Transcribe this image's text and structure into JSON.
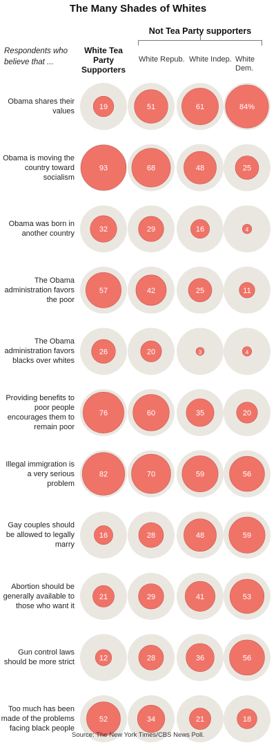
{
  "title": "The Many Shades of Whites",
  "group_label": "Not Tea Party supporters",
  "intro": "Respondents who believe that ...",
  "columns": {
    "c0": "White Tea Party Supporters",
    "c1": "White Repub.",
    "c2": "White Indep.",
    "c3": "White Dem."
  },
  "source": "Source: The New York Times/CBS News Poll.",
  "colors": {
    "outer": "#eae7e1",
    "inner": "#f07368",
    "inner_stroke": "#c9584f"
  },
  "chart_data": {
    "type": "bubble-table",
    "unit": "percent",
    "value_range": [
      0,
      100
    ],
    "columns": [
      "White Tea Party Supporters",
      "White Repub.",
      "White Indep.",
      "White Dem."
    ],
    "rows": [
      {
        "label": "Obama shares their values",
        "values": [
          19,
          51,
          61,
          84
        ],
        "display": [
          "19",
          "51",
          "61",
          "84%"
        ]
      },
      {
        "label": "Obama is moving the country toward socialism",
        "values": [
          93,
          68,
          48,
          25
        ]
      },
      {
        "label": "Obama was born in another country",
        "values": [
          32,
          29,
          16,
          4
        ]
      },
      {
        "label": "The Obama administration favors the poor",
        "values": [
          57,
          42,
          25,
          11
        ]
      },
      {
        "label": "The Obama administration favors blacks over whites",
        "values": [
          26,
          20,
          3,
          4
        ]
      },
      {
        "label": "Providing benefits to poor people encourages them to remain poor",
        "values": [
          76,
          60,
          35,
          20
        ]
      },
      {
        "label": "Illegal immigration is a very serious problem",
        "values": [
          82,
          70,
          59,
          56
        ]
      },
      {
        "label": "Gay couples should be allowed to legally marry",
        "values": [
          16,
          28,
          48,
          59
        ]
      },
      {
        "label": "Abortion should be generally available to those who want it",
        "values": [
          21,
          29,
          41,
          53
        ]
      },
      {
        "label": "Gun control laws should be more strict",
        "values": [
          12,
          28,
          36,
          56
        ]
      },
      {
        "label": "Too much has been made of the problems facing black people",
        "values": [
          52,
          34,
          21,
          18
        ]
      }
    ]
  }
}
